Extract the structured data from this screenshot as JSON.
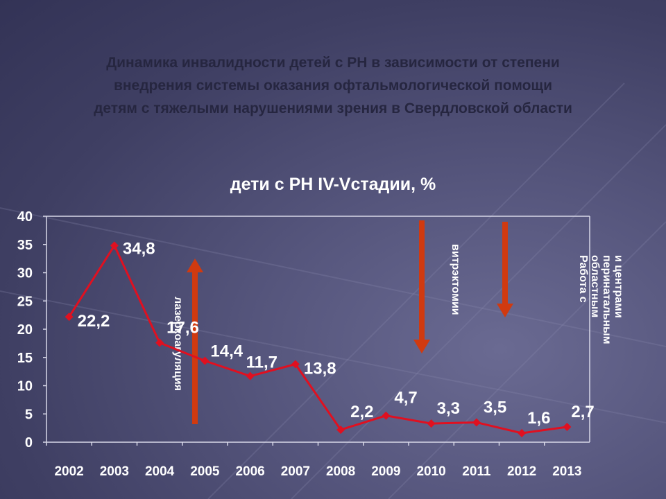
{
  "slide": {
    "title": "Динамика инвалидности детей с РН в зависимости от степени\nвнедрения системы оказания офтальмологической помощи\nдетям с тяжелыми нарушениями зрения в Свердловской области"
  },
  "chart_data": {
    "type": "line",
    "title": "дети с РН IV-Vстадии, %",
    "categories": [
      "2002",
      "2003",
      "2004",
      "2005",
      "2006",
      "2007",
      "2008",
      "2009",
      "2010",
      "2011",
      "2012",
      "2013"
    ],
    "values": [
      22.2,
      34.8,
      17.6,
      14.4,
      11.7,
      13.8,
      2.2,
      4.7,
      3.3,
      3.5,
      1.6,
      2.7
    ],
    "value_labels": [
      "22,2",
      "34,8",
      "17,6",
      "14,4",
      "11,7",
      "13,8",
      "2,2",
      "4,7",
      "3,3",
      "3,5",
      "1,6",
      "2,7"
    ],
    "yticks": [
      "0",
      "5",
      "10",
      "15",
      "20",
      "25",
      "30",
      "35",
      "40"
    ],
    "ylim": [
      0,
      40
    ],
    "line_color": "#e01020",
    "arrow_color": "#d03a10",
    "grid": false,
    "annotations": [
      {
        "text": "лазеркоагуляция",
        "direction": "up"
      },
      {
        "text": "витрэктомии",
        "direction": "down"
      },
      {
        "text": "Работа с\nобластным\nперинатальным\nи центрами",
        "direction": "down"
      }
    ]
  }
}
